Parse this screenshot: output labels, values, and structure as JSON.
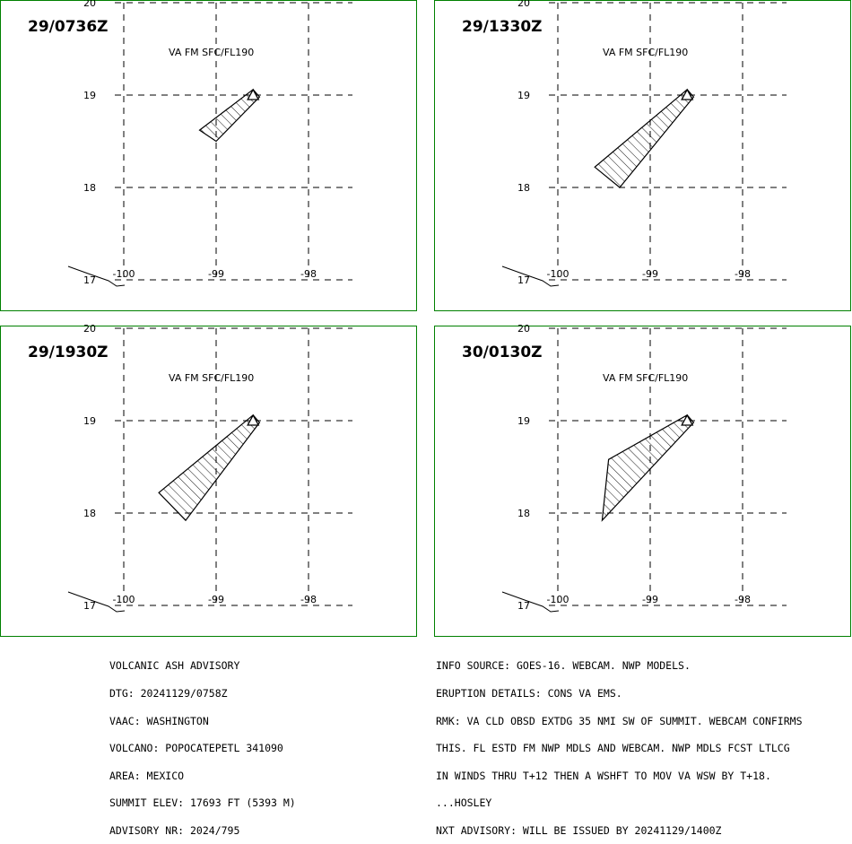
{
  "panels": [
    {
      "time": "29/0736Z",
      "level": "VA FM SFC/FL190",
      "polygon": [
        [
          -98.6,
          19.06
        ],
        [
          -98.53,
          18.98
        ],
        [
          -99.0,
          18.5
        ],
        [
          -99.18,
          18.62
        ],
        [
          -98.6,
          19.06
        ]
      ]
    },
    {
      "time": "29/1330Z",
      "level": "VA FM SFC/FL190",
      "polygon": [
        [
          -98.6,
          19.06
        ],
        [
          -98.53,
          18.98
        ],
        [
          -99.33,
          18.0
        ],
        [
          -99.6,
          18.22
        ],
        [
          -98.6,
          19.06
        ]
      ]
    },
    {
      "time": "29/1930Z",
      "level": "VA FM SFC/FL190",
      "polygon": [
        [
          -98.6,
          19.06
        ],
        [
          -98.53,
          18.98
        ],
        [
          -99.33,
          17.92
        ],
        [
          -99.62,
          18.22
        ],
        [
          -98.6,
          19.06
        ]
      ]
    },
    {
      "time": "30/0130Z",
      "level": "VA FM SFC/FL190",
      "polygon": [
        [
          -98.6,
          19.06
        ],
        [
          -98.53,
          18.98
        ],
        [
          -99.52,
          17.92
        ],
        [
          -99.45,
          18.58
        ],
        [
          -98.6,
          19.06
        ]
      ]
    }
  ],
  "map": {
    "lon_labels": [
      "-100",
      "-99",
      "-98"
    ],
    "lat_labels": [
      "20",
      "19",
      "18",
      "17"
    ],
    "volcano_symbol": "triangle-summit-icon",
    "border_color": "#008000"
  },
  "advisory_left": [
    "VOLCANIC ASH ADVISORY",
    "DTG: 20241129/0758Z",
    "VAAC: WASHINGTON",
    "VOLCANO: POPOCATEPETL 341090",
    "AREA: MEXICO",
    "SUMMIT ELEV: 17693 FT (5393 M)",
    "ADVISORY NR: 2024/795"
  ],
  "advisory_right": [
    "INFO SOURCE: GOES-16. WEBCAM. NWP MODELS.",
    "ERUPTION DETAILS: CONS VA EMS.",
    "RMK: VA CLD OBSD EXTDG 35 NMI SW OF SUMMIT. WEBCAM CONFIRMS",
    "THIS. FL ESTD FM NWP MDLS AND WEBCAM. NWP MDLS FCST LTLCG",
    "IN WINDS THRU T+12 THEN A WSHFT TO MOV VA WSW BY T+18.",
    "...HOSLEY",
    "NXT ADVISORY: WILL BE ISSUED BY 20241129/1400Z"
  ]
}
